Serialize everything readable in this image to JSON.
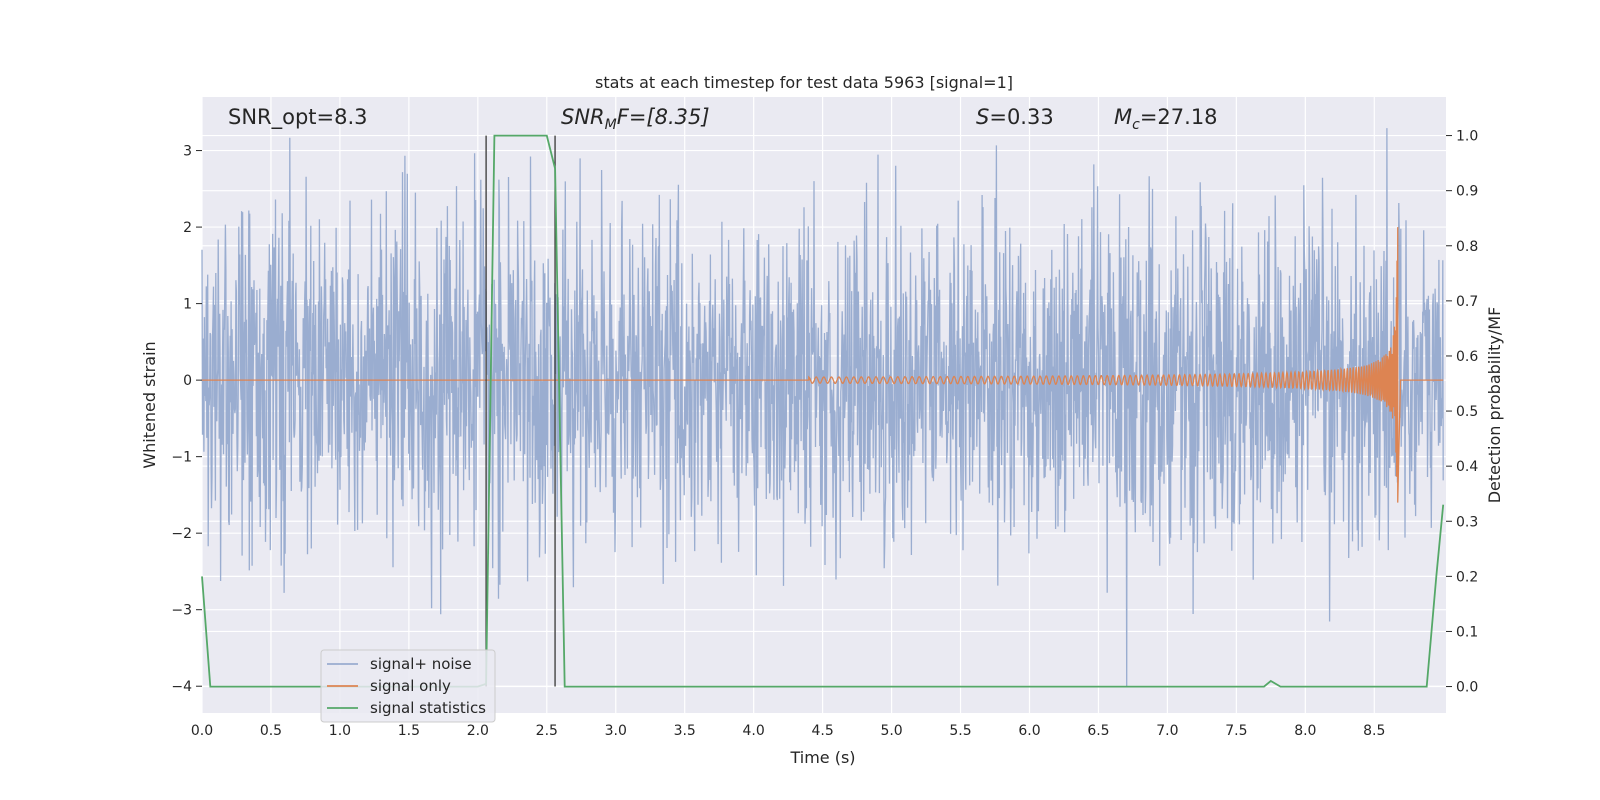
{
  "chart_data": {
    "type": "line",
    "title": "stats at each timestep for test data 5963 [signal=1]",
    "xlabel": "Time (s)",
    "ylabel_left": "Whitened strain",
    "ylabel_right": "Detection probability/MF",
    "xlim": [
      0.0,
      9.0
    ],
    "ylim_left": [
      -4.35,
      3.7
    ],
    "ylim_right": [
      -0.048,
      1.07
    ],
    "x_ticks": [
      "0.0",
      "0.5",
      "1.0",
      "1.5",
      "2.0",
      "2.5",
      "3.0",
      "3.5",
      "4.0",
      "4.5",
      "5.0",
      "5.5",
      "6.0",
      "6.5",
      "7.0",
      "7.5",
      "8.0",
      "8.5"
    ],
    "y_ticks_left": [
      "3",
      "2",
      "1",
      "0",
      "−1",
      "−2",
      "−3",
      "−4"
    ],
    "y_ticks_right": [
      "1.0",
      "0.9",
      "0.8",
      "0.7",
      "0.6",
      "0.5",
      "0.4",
      "0.3",
      "0.2",
      "0.1",
      "0.0"
    ],
    "grid": true,
    "legend_position": "lower-left",
    "annotations": {
      "snr_opt": "SNR_opt=8.3",
      "snr_mf_base": "SNR",
      "snr_mf_sub": "M",
      "snr_mf_rest": "F=[8.35]",
      "s_base": "S",
      "s_rest": "=0.33",
      "mc_base": "M",
      "mc_sub": "c",
      "mc_rest": "=27.18"
    },
    "vertical_markers_s": [
      2.06,
      2.56
    ],
    "series": [
      {
        "name": "signal+ noise",
        "color": "#9aadd0",
        "description_values": "whitened noise, roughly zero-mean, amplitude mostly within ±2, peaks near 3.3 and −4.0",
        "x_range": [
          0.0,
          9.0
        ],
        "approx_range": [
          -4.0,
          3.3
        ]
      },
      {
        "name": "signal only",
        "color": "#dd8452",
        "chirp": {
          "t_start": 4.4,
          "t_merger": 8.67,
          "peak_amplitude": 2.0
        }
      },
      {
        "name": "signal statistics",
        "color": "#55a868",
        "axis": "right",
        "x": [
          0.0,
          0.06,
          0.12,
          2.0,
          2.06,
          2.12,
          2.5,
          2.56,
          2.63,
          7.7,
          7.75,
          7.82,
          8.88,
          8.95,
          9.0
        ],
        "y": [
          0.2,
          0.0,
          0.0,
          0.0,
          0.005,
          1.0,
          1.0,
          0.94,
          0.0,
          0.0,
          0.01,
          0.0,
          0.0,
          0.2,
          0.33
        ]
      }
    ]
  }
}
